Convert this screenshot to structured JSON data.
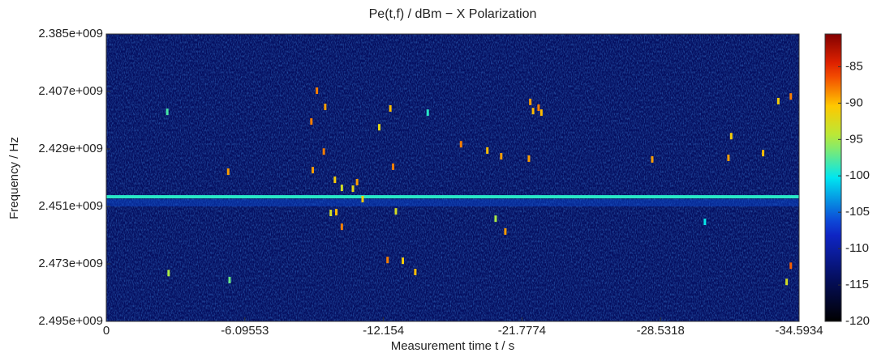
{
  "chart_data": {
    "type": "heatmap",
    "title": "Pe(t,f) / dBm − X Polarization",
    "x_label": "Measurement time t / s",
    "y_label": "Frequency / Hz",
    "xlim": [
      0,
      5
    ],
    "xticks": [
      {
        "value": 0,
        "label": "0"
      },
      {
        "value": 1,
        "label": "-6.09553"
      },
      {
        "value": 2,
        "label": "-12.154"
      },
      {
        "value": 3,
        "label": "-21.7774"
      },
      {
        "value": 4,
        "label": "-28.5318"
      },
      {
        "value": 5,
        "label": "-34.5934"
      }
    ],
    "ylim": [
      2385000000.0,
      2495000000.0
    ],
    "y_reversed": true,
    "yticks": [
      {
        "value": 2385000000.0,
        "label": "2.385e+009"
      },
      {
        "value": 2407000000.0,
        "label": "2.407e+009"
      },
      {
        "value": 2429000000.0,
        "label": "2.429e+009"
      },
      {
        "value": 2451000000.0,
        "label": "2.451e+009"
      },
      {
        "value": 2473000000.0,
        "label": "2.473e+009"
      },
      {
        "value": 2495000000.0,
        "label": "2.495e+009"
      }
    ],
    "clim": [
      -120,
      -80.5
    ],
    "cticks": [
      -85,
      -90,
      -95,
      -100,
      -105,
      -110,
      -115,
      -120
    ],
    "background_value": -114,
    "band": {
      "frequency": 2447300000.0,
      "value": -99
    },
    "spots": {
      "x": [
        1.52,
        1.58,
        1.48,
        0.44,
        3.06,
        3.08,
        3.12,
        3.14,
        2.56,
        2.75,
        2.85,
        3.05,
        3.94,
        4.49,
        4.51,
        4.74,
        4.85,
        4.94,
        2.05,
        1.97,
        1.57,
        1.49,
        0.88,
        1.65,
        1.7,
        1.81,
        2.07,
        1.78,
        1.85,
        1.62,
        1.66,
        1.7,
        2.09,
        2.03,
        2.14,
        2.23,
        2.88,
        2.81,
        4.91,
        4.94,
        0.45,
        0.89,
        2.32,
        4.32
      ],
      "y": [
        2406700000.0,
        2412900000.0,
        2418500000.0,
        2414800000.0,
        2411000000.0,
        2414500000.0,
        2413200000.0,
        2415100000.0,
        2427200000.0,
        2429600000.0,
        2431800000.0,
        2432700000.0,
        2433000000.0,
        2432400000.0,
        2424100000.0,
        2430600000.0,
        2410700000.0,
        2408900000.0,
        2413500000.0,
        2420700000.0,
        2430000000.0,
        2437100000.0,
        2437700000.0,
        2440800000.0,
        2443900000.0,
        2441700000.0,
        2435800000.0,
        2444200000.0,
        2448200000.0,
        2453500000.0,
        2453200000.0,
        2458800000.0,
        2452900000.0,
        2471500000.0,
        2471800000.0,
        2476100000.0,
        2460600000.0,
        2455700000.0,
        2479900000.0,
        2473700000.0,
        2476500000.0,
        2479200000.0,
        2415100000.0,
        2456900000.0
      ],
      "values": [
        -88,
        -89,
        -88,
        -98,
        -89,
        -90,
        -88,
        -90,
        -88,
        -90,
        -89,
        -89,
        -89,
        -89,
        -91,
        -90,
        -91,
        -88,
        -90,
        -92,
        -88,
        -89,
        -89,
        -91,
        -93,
        -89,
        -88,
        -92,
        -91,
        -93,
        -90,
        -88,
        -93,
        -88,
        -91,
        -90,
        -89,
        -95,
        -93,
        -87,
        -95,
        -97,
        -99,
        -100
      ]
    }
  }
}
